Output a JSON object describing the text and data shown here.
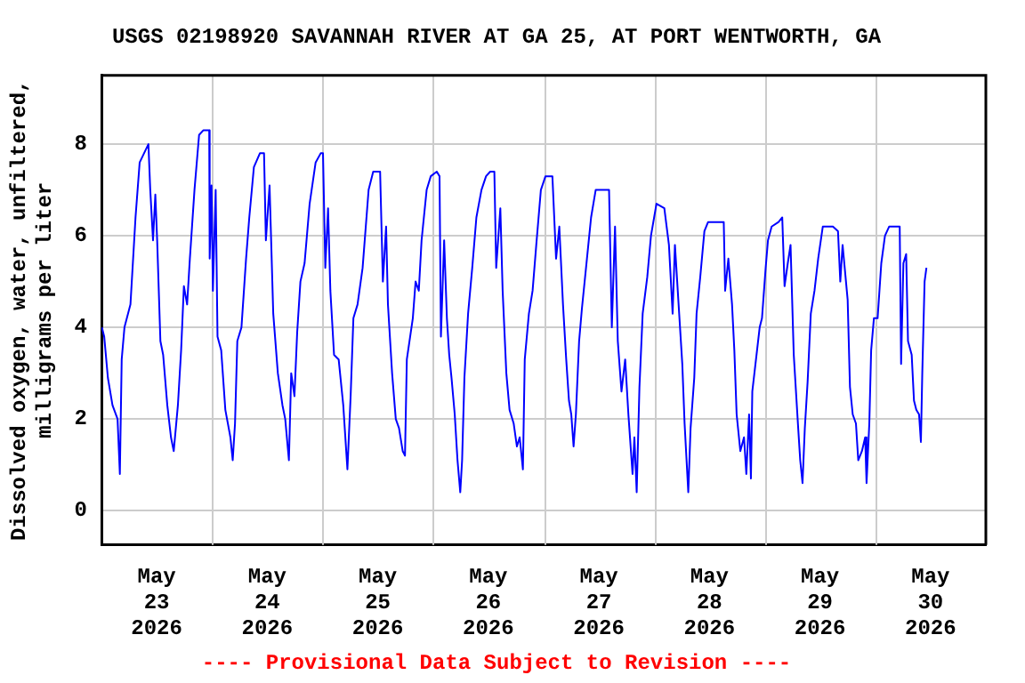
{
  "chart_data": {
    "type": "line",
    "title": "USGS 02198920 SAVANNAH RIVER AT GA 25, AT PORT WENTWORTH, GA",
    "ylabel": "Dissolved oxygen, water, unfiltered,\nmilligrams per liter",
    "annotations": [
      "---- Provisional Data Subject to Revision ----"
    ],
    "xlim": [
      "2026-05-23T00:00",
      "2026-05-31T00:00"
    ],
    "xticks": [
      {
        "value": "2026-05-23T12:00",
        "label": "May\n23\n2026"
      },
      {
        "value": "2026-05-24T00:00",
        "label": null
      },
      {
        "value": "2026-05-24T12:00",
        "label": "May\n24\n2026"
      },
      {
        "value": "2026-05-25T00:00",
        "label": null
      },
      {
        "value": "2026-05-25T12:00",
        "label": "May\n25\n2026"
      },
      {
        "value": "2026-05-26T00:00",
        "label": null
      },
      {
        "value": "2026-05-26T12:00",
        "label": "May\n26\n2026"
      },
      {
        "value": "2026-05-27T00:00",
        "label": null
      },
      {
        "value": "2026-05-27T12:00",
        "label": "May\n27\n2026"
      },
      {
        "value": "2026-05-28T00:00",
        "label": null
      },
      {
        "value": "2026-05-28T12:00",
        "label": "May\n28\n2026"
      },
      {
        "value": "2026-05-29T00:00",
        "label": null
      },
      {
        "value": "2026-05-29T12:00",
        "label": "May\n29\n2026"
      },
      {
        "value": "2026-05-30T00:00",
        "label": null
      },
      {
        "value": "2026-05-30T12:00",
        "label": "May\n30\n2026"
      }
    ],
    "ylim": [
      -0.75,
      9.5
    ],
    "yticks": [
      0,
      2,
      4,
      6,
      8
    ],
    "grid": true,
    "legend": false,
    "series": [
      {
        "color": "#0000ff",
        "x": [
          "2026-05-23T00:06",
          "2026-05-23T00:36",
          "2026-05-23T01:24",
          "2026-05-23T02:24",
          "2026-05-23T03:30",
          "2026-05-23T04:00",
          "2026-05-23T04:24",
          "2026-05-23T05:00",
          "2026-05-23T06:18",
          "2026-05-23T07:24",
          "2026-05-23T08:18",
          "2026-05-23T10:12",
          "2026-05-23T10:36",
          "2026-05-23T11:12",
          "2026-05-23T11:42",
          "2026-05-23T12:06",
          "2026-05-23T12:48",
          "2026-05-23T13:24",
          "2026-05-23T14:18",
          "2026-05-23T15:06",
          "2026-05-23T15:42",
          "2026-05-23T16:36",
          "2026-05-23T17:18",
          "2026-05-23T17:54",
          "2026-05-23T18:36",
          "2026-05-23T19:12",
          "2026-05-23T20:12",
          "2026-05-23T21:12",
          "2026-05-23T22:06",
          "2026-05-23T23:24",
          "2026-05-23T23:30",
          "2026-05-23T23:54",
          "2026-05-24T00:12",
          "2026-05-24T00:48",
          "2026-05-24T01:12",
          "2026-05-24T02:00",
          "2026-05-24T02:54",
          "2026-05-24T04:00",
          "2026-05-24T04:30",
          "2026-05-24T05:00",
          "2026-05-24T05:30",
          "2026-05-24T06:24",
          "2026-05-24T07:24",
          "2026-05-24T08:06",
          "2026-05-24T09:06",
          "2026-05-24T10:24",
          "2026-05-24T11:18",
          "2026-05-24T11:42",
          "2026-05-24T12:30",
          "2026-05-24T13:18",
          "2026-05-24T14:18",
          "2026-05-24T15:18",
          "2026-05-24T15:54",
          "2026-05-24T16:42",
          "2026-05-24T17:12",
          "2026-05-24T17:54",
          "2026-05-24T18:30",
          "2026-05-24T19:12",
          "2026-05-24T20:06",
          "2026-05-24T21:12",
          "2026-05-24T22:30",
          "2026-05-24T23:36",
          "2026-05-25T00:06",
          "2026-05-25T00:36",
          "2026-05-25T01:12",
          "2026-05-25T01:42",
          "2026-05-25T02:30",
          "2026-05-25T03:30",
          "2026-05-25T04:30",
          "2026-05-25T05:24",
          "2026-05-25T06:06",
          "2026-05-25T06:42",
          "2026-05-25T07:36",
          "2026-05-25T08:42",
          "2026-05-25T10:00",
          "2026-05-25T11:00",
          "2026-05-25T12:30",
          "2026-05-25T13:06",
          "2026-05-25T13:48",
          "2026-05-25T14:12",
          "2026-05-25T15:06",
          "2026-05-25T15:54",
          "2026-05-25T16:36",
          "2026-05-25T17:24",
          "2026-05-25T17:54",
          "2026-05-25T18:18",
          "2026-05-25T19:36",
          "2026-05-25T20:12",
          "2026-05-25T20:54",
          "2026-05-25T21:30",
          "2026-05-25T22:36",
          "2026-05-25T23:30",
          "2026-05-26T00:48",
          "2026-05-26T01:24",
          "2026-05-26T01:42",
          "2026-05-26T02:24",
          "2026-05-26T03:00",
          "2026-05-26T03:30",
          "2026-05-26T04:00",
          "2026-05-26T04:42",
          "2026-05-26T05:18",
          "2026-05-26T05:54",
          "2026-05-26T06:18",
          "2026-05-26T06:48",
          "2026-05-26T07:36",
          "2026-05-26T08:30",
          "2026-05-26T09:24",
          "2026-05-26T10:30",
          "2026-05-26T11:30",
          "2026-05-26T12:24",
          "2026-05-26T13:18",
          "2026-05-26T13:42",
          "2026-05-26T14:36",
          "2026-05-26T15:06",
          "2026-05-26T15:54",
          "2026-05-26T16:36",
          "2026-05-26T17:30",
          "2026-05-26T18:12",
          "2026-05-26T18:48",
          "2026-05-26T19:30",
          "2026-05-26T19:54",
          "2026-05-26T20:48",
          "2026-05-26T21:36",
          "2026-05-26T22:24",
          "2026-05-26T23:24",
          "2026-05-27T00:24",
          "2026-05-27T01:54",
          "2026-05-27T02:42",
          "2026-05-27T03:24",
          "2026-05-27T04:12",
          "2026-05-27T04:54",
          "2026-05-27T05:30",
          "2026-05-27T06:00",
          "2026-05-27T06:30",
          "2026-05-27T07:00",
          "2026-05-27T07:42",
          "2026-05-27T08:18",
          "2026-05-27T09:24",
          "2026-05-27T10:18",
          "2026-05-27T11:18",
          "2026-05-27T14:12",
          "2026-05-27T14:48",
          "2026-05-27T15:30",
          "2026-05-27T16:06",
          "2026-05-27T16:54",
          "2026-05-27T17:42",
          "2026-05-27T18:24",
          "2026-05-27T19:18",
          "2026-05-27T19:42",
          "2026-05-27T20:12",
          "2026-05-27T20:48",
          "2026-05-27T21:30",
          "2026-05-27T22:30",
          "2026-05-27T23:18",
          "2026-05-28T00:30",
          "2026-05-28T02:12",
          "2026-05-28T03:12",
          "2026-05-28T04:00",
          "2026-05-28T04:30",
          "2026-05-28T05:18",
          "2026-05-28T06:06",
          "2026-05-28T06:36",
          "2026-05-28T07:24",
          "2026-05-28T07:54",
          "2026-05-28T08:42",
          "2026-05-28T09:12",
          "2026-05-28T10:00",
          "2026-05-28T10:54",
          "2026-05-28T11:42",
          "2026-05-28T15:06",
          "2026-05-28T15:24",
          "2026-05-28T16:06",
          "2026-05-28T16:54",
          "2026-05-28T17:24",
          "2026-05-28T17:54",
          "2026-05-28T18:42",
          "2026-05-28T19:30",
          "2026-05-28T20:00",
          "2026-05-28T20:36",
          "2026-05-28T21:00",
          "2026-05-28T21:18",
          "2026-05-28T22:06",
          "2026-05-28T22:54",
          "2026-05-28T23:24",
          "2026-05-29T00:12",
          "2026-05-29T00:42",
          "2026-05-29T01:30",
          "2026-05-29T03:00",
          "2026-05-29T03:48",
          "2026-05-29T04:18",
          "2026-05-29T05:00",
          "2026-05-29T05:36",
          "2026-05-29T06:18",
          "2026-05-29T07:12",
          "2026-05-29T07:42",
          "2026-05-29T08:12",
          "2026-05-29T08:42",
          "2026-05-29T09:18",
          "2026-05-29T10:00",
          "2026-05-29T10:48",
          "2026-05-29T11:36",
          "2026-05-29T12:36",
          "2026-05-29T14:48",
          "2026-05-29T15:54",
          "2026-05-29T16:24",
          "2026-05-29T16:54",
          "2026-05-29T18:00",
          "2026-05-29T18:30",
          "2026-05-29T19:06",
          "2026-05-29T19:48",
          "2026-05-29T20:18",
          "2026-05-29T21:06",
          "2026-05-29T21:48",
          "2026-05-29T22:06",
          "2026-05-29T22:42",
          "2026-05-29T23:06",
          "2026-05-29T23:42",
          "2026-05-30T00:30",
          "2026-05-30T01:18",
          "2026-05-30T02:06",
          "2026-05-30T03:00",
          "2026-05-30T03:54",
          "2026-05-30T05:18",
          "2026-05-30T05:36",
          "2026-05-30T06:06",
          "2026-05-30T06:42",
          "2026-05-30T07:06",
          "2026-05-30T07:54",
          "2026-05-30T08:24",
          "2026-05-30T08:54",
          "2026-05-30T09:30",
          "2026-05-30T09:54",
          "2026-05-30T10:12",
          "2026-05-30T10:42",
          "2026-05-30T11:06"
        ],
        "values": [
          4.0,
          3.8,
          2.9,
          2.3,
          2.0,
          0.8,
          3.3,
          4.0,
          4.5,
          6.4,
          7.6,
          8.0,
          7.0,
          5.9,
          6.9,
          5.9,
          3.7,
          3.4,
          2.3,
          1.6,
          1.3,
          2.3,
          3.5,
          4.9,
          4.5,
          5.5,
          7.0,
          8.2,
          8.3,
          8.3,
          5.5,
          7.1,
          4.8,
          7.0,
          3.8,
          3.5,
          2.2,
          1.6,
          1.1,
          1.9,
          3.7,
          4.0,
          5.5,
          6.4,
          7.5,
          7.8,
          7.8,
          5.9,
          7.1,
          4.3,
          3.0,
          2.3,
          2.0,
          1.1,
          3.0,
          2.5,
          3.9,
          5.0,
          5.4,
          6.7,
          7.6,
          7.8,
          7.8,
          5.3,
          6.6,
          4.8,
          3.4,
          3.3,
          2.3,
          0.9,
          2.5,
          4.2,
          4.5,
          5.3,
          7.0,
          7.4,
          7.4,
          5.0,
          6.2,
          4.5,
          3.0,
          2.0,
          1.8,
          1.3,
          1.2,
          3.3,
          4.2,
          5.0,
          4.8,
          5.9,
          7.0,
          7.3,
          7.4,
          7.3,
          3.8,
          5.9,
          4.2,
          3.4,
          2.9,
          2.1,
          1.1,
          0.4,
          1.1,
          2.9,
          4.3,
          5.3,
          6.4,
          7.0,
          7.3,
          7.4,
          7.4,
          5.3,
          6.6,
          4.8,
          3.0,
          2.2,
          1.9,
          1.4,
          1.6,
          0.9,
          3.3,
          4.3,
          4.8,
          5.8,
          7.0,
          7.3,
          7.3,
          5.5,
          6.2,
          4.5,
          3.3,
          2.4,
          2.1,
          1.4,
          2.1,
          3.7,
          4.4,
          5.5,
          6.4,
          7.0,
          7.0,
          4.0,
          6.2,
          3.7,
          2.6,
          3.3,
          2.1,
          0.8,
          1.6,
          0.4,
          2.7,
          4.3,
          5.1,
          6.0,
          6.7,
          6.6,
          5.8,
          4.3,
          5.8,
          4.5,
          3.2,
          1.9,
          0.4,
          1.8,
          2.9,
          4.3,
          5.1,
          6.1,
          6.3,
          6.3,
          4.8,
          5.5,
          4.5,
          3.5,
          2.1,
          1.3,
          1.6,
          0.8,
          2.1,
          0.7,
          2.6,
          3.3,
          4.0,
          4.2,
          5.3,
          5.9,
          6.2,
          6.3,
          6.4,
          4.9,
          5.4,
          5.8,
          3.4,
          1.9,
          1.1,
          0.6,
          1.8,
          2.8,
          4.3,
          4.8,
          5.5,
          6.2,
          6.2,
          6.1,
          5.0,
          5.8,
          4.6,
          2.7,
          2.1,
          1.9,
          1.1,
          1.3,
          1.6,
          0.6,
          1.9,
          3.5,
          4.2,
          4.2,
          5.4,
          6.0,
          6.2,
          6.2,
          6.2,
          3.2,
          5.4,
          5.6,
          3.7,
          3.4,
          2.4,
          2.2,
          2.1,
          1.5,
          3.0,
          5.0,
          5.3
        ]
      }
    ]
  }
}
